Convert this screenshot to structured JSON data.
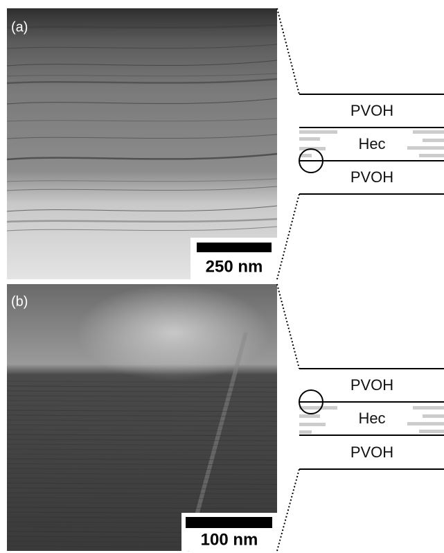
{
  "panels": [
    {
      "label": "(a)",
      "scale_bar": "250 nm",
      "layers": [
        "PVOH",
        "Hec",
        "PVOH"
      ]
    },
    {
      "label": "(b)",
      "scale_bar": "100 nm",
      "layers": [
        "PVOH",
        "Hec",
        "PVOH"
      ]
    }
  ]
}
